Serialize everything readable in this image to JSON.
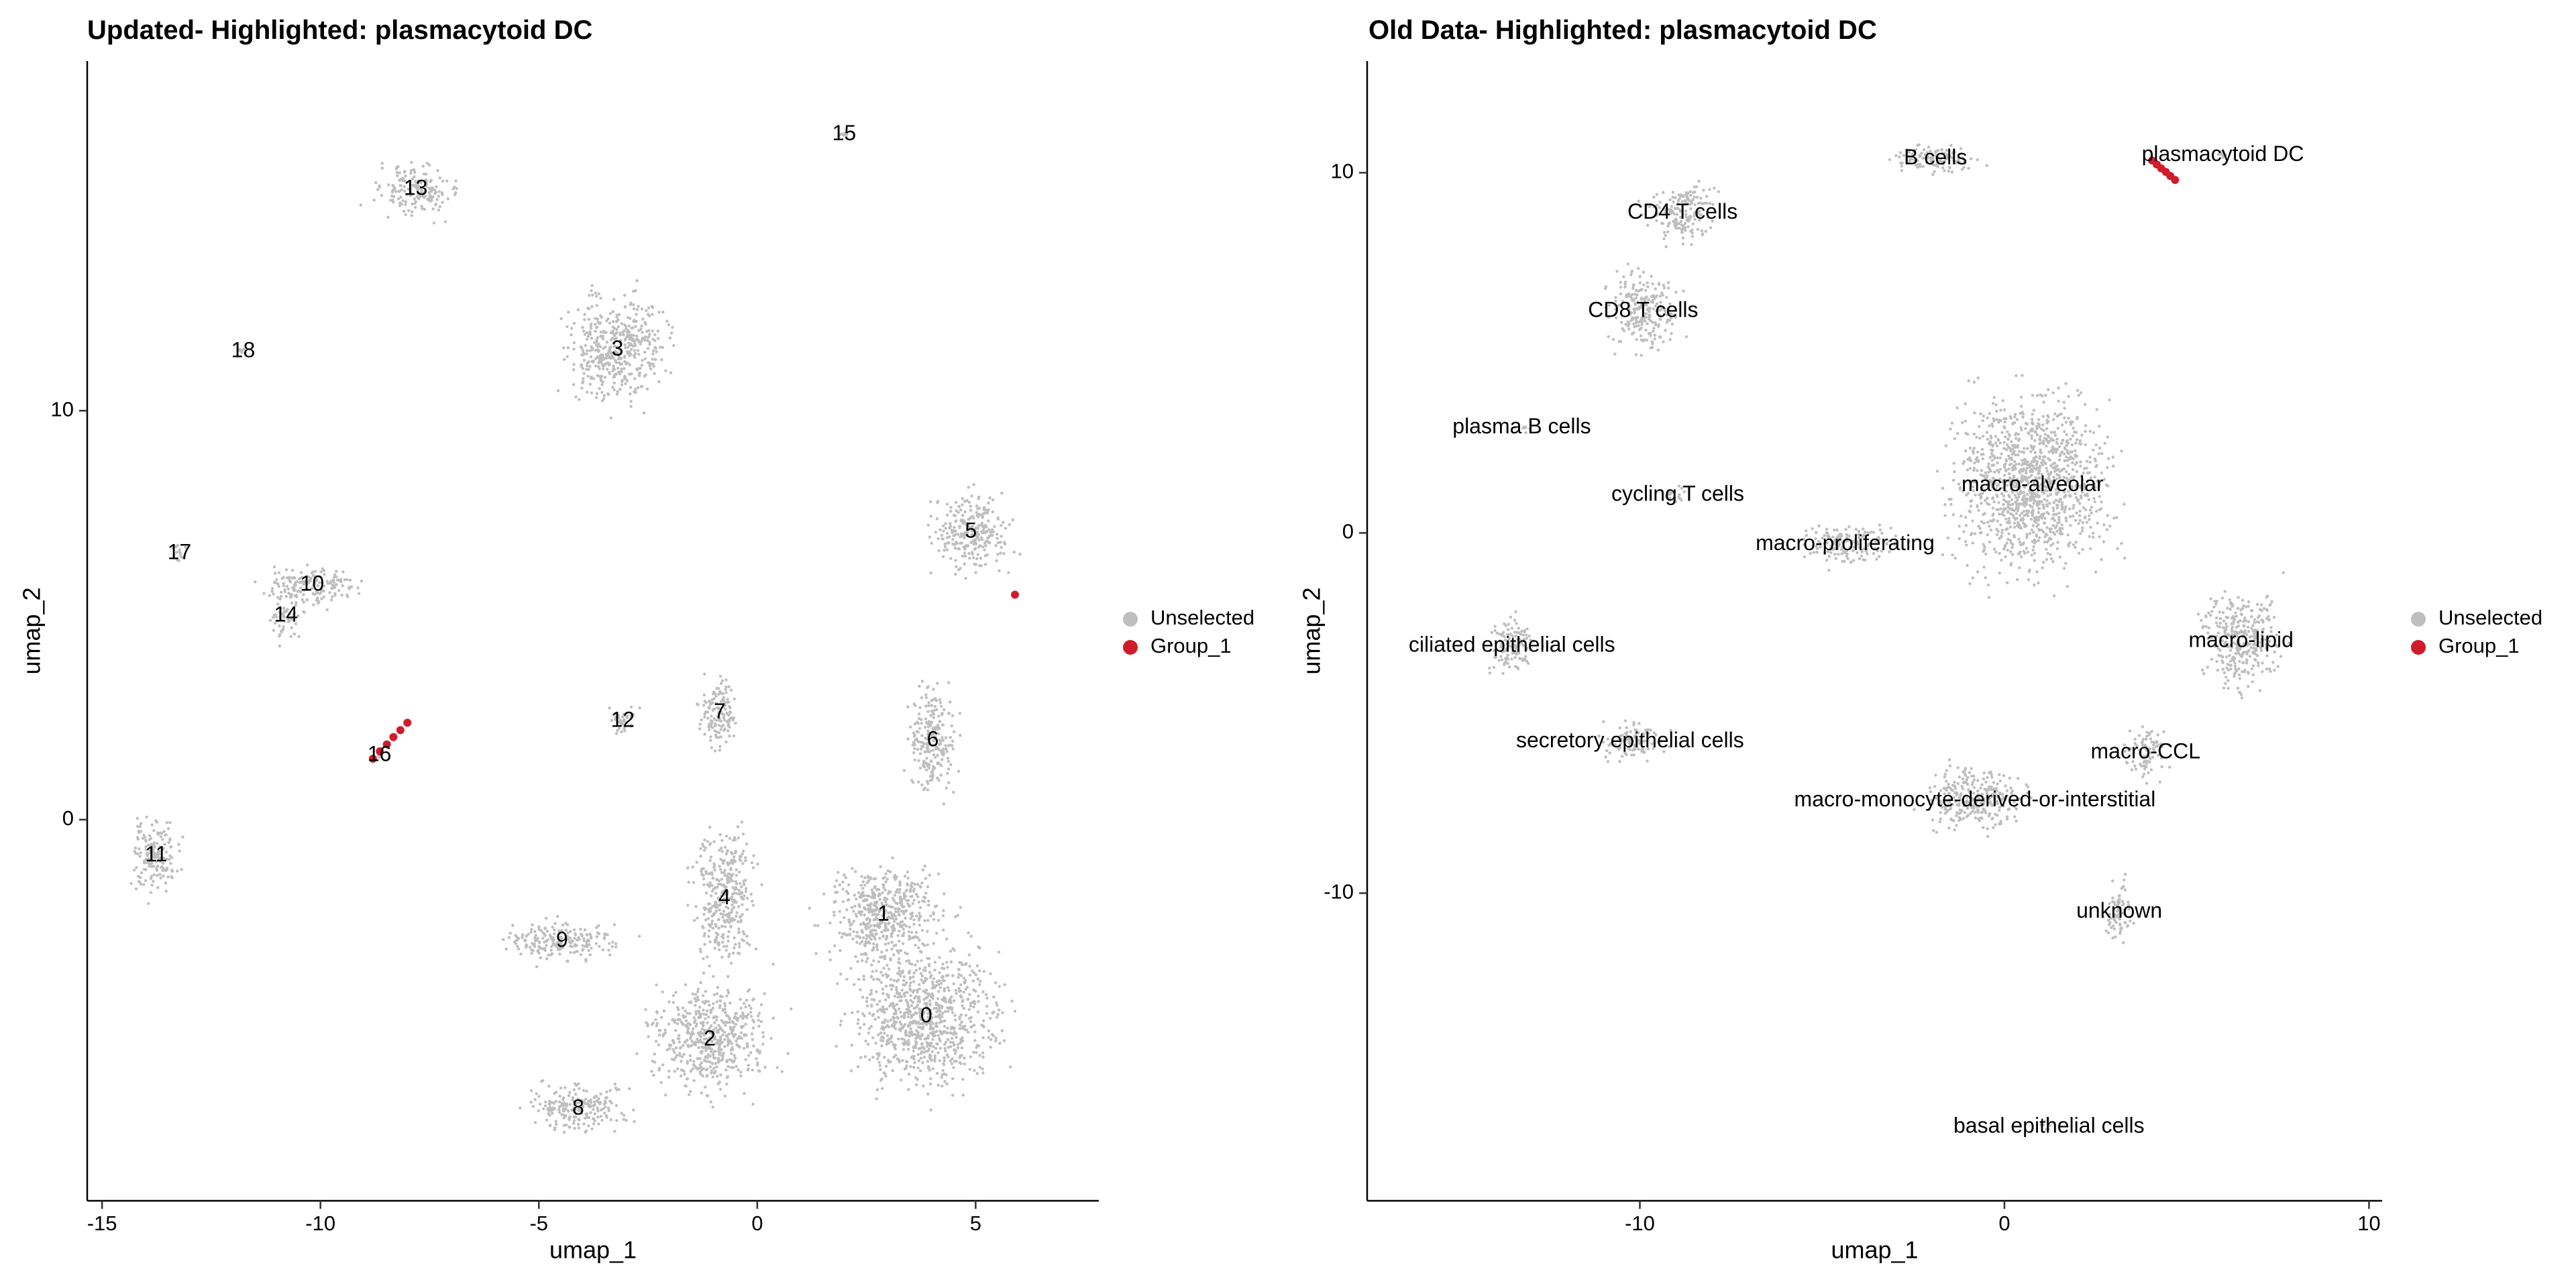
{
  "chart_data": [
    {
      "type": "scatter",
      "title": "Updated- Highlighted: plasmacytoid DC",
      "xlabel": "umap_1",
      "ylabel": "umap_2",
      "xlim": [
        -15.34,
        7.82
      ],
      "ylim": [
        -9.32,
        18.55
      ],
      "xticks": [
        -15,
        -10,
        -5,
        0,
        5
      ],
      "yticks": [
        0,
        10
      ],
      "series": [
        {
          "name": "Unselected",
          "color": "#bebebe"
        },
        {
          "name": "Group_1",
          "color": "#d01c2a",
          "x": [
            -8.8,
            -8.64,
            -8.48,
            -8.33,
            -8.17,
            -8.01,
            5.9
          ],
          "y": [
            1.49,
            1.67,
            1.84,
            2.02,
            2.19,
            2.37,
            5.5
          ]
        }
      ],
      "labels": [
        {
          "text": "0",
          "x": 3.87,
          "y": -4.82
        },
        {
          "text": "1",
          "x": 2.89,
          "y": -2.33
        },
        {
          "text": "2",
          "x": -1.09,
          "y": -5.38
        },
        {
          "text": "3",
          "x": -3.2,
          "y": 11.49
        },
        {
          "text": "4",
          "x": -0.75,
          "y": -1.93
        },
        {
          "text": "5",
          "x": 4.89,
          "y": 7.03
        },
        {
          "text": "6",
          "x": 4.02,
          "y": 1.93
        },
        {
          "text": "7",
          "x": -0.86,
          "y": 2.61
        },
        {
          "text": "8",
          "x": -4.1,
          "y": -7.07
        },
        {
          "text": "9",
          "x": -4.47,
          "y": -2.97
        },
        {
          "text": "10",
          "x": -10.19,
          "y": 5.74
        },
        {
          "text": "11",
          "x": -13.76,
          "y": -0.88
        },
        {
          "text": "12",
          "x": -3.08,
          "y": 2.41
        },
        {
          "text": "13",
          "x": -7.82,
          "y": 15.42
        },
        {
          "text": "14",
          "x": -10.79,
          "y": 4.98
        },
        {
          "text": "15",
          "x": 1.99,
          "y": 16.75
        },
        {
          "text": "16",
          "x": -8.65,
          "y": 1.57
        },
        {
          "text": "17",
          "x": -13.23,
          "y": 6.51
        },
        {
          "text": "18",
          "x": -11.77,
          "y": 11.45
        }
      ]
    },
    {
      "type": "scatter",
      "title": "Old Data- Highlighted: plasmacytoid DC",
      "xlabel": "umap_1",
      "ylabel": "umap_2",
      "xlim": [
        -17.48,
        10.36
      ],
      "ylim": [
        -18.54,
        13.1
      ],
      "xticks": [
        -10,
        0,
        10
      ],
      "yticks": [
        -10,
        0,
        10
      ],
      "series": [
        {
          "name": "Unselected",
          "color": "#bebebe"
        },
        {
          "name": "Group_1",
          "color": "#d01c2a",
          "x": [
            4.05,
            4.18,
            4.3,
            4.43,
            4.55,
            4.68
          ],
          "y": [
            10.34,
            10.23,
            10.12,
            10.02,
            9.91,
            9.8
          ]
        }
      ],
      "labels": [
        {
          "text": "B cells",
          "x": -1.89,
          "y": 10.39
        },
        {
          "text": "plasmacytoid DC",
          "x": 5.99,
          "y": 10.48
        },
        {
          "text": "CD4 T cells",
          "x": -8.83,
          "y": 8.88
        },
        {
          "text": "CD8 T cells",
          "x": -9.91,
          "y": 6.15
        },
        {
          "text": "plasma B cells",
          "x": -13.24,
          "y": 2.92
        },
        {
          "text": "cycling T cells",
          "x": -8.96,
          "y": 1.05
        },
        {
          "text": "macro-alveolar",
          "x": 0.77,
          "y": 1.32
        },
        {
          "text": "macro-proliferating",
          "x": -4.37,
          "y": -0.32
        },
        {
          "text": "ciliated epithelial cells",
          "x": -13.51,
          "y": -3.14
        },
        {
          "text": "macro-lipid",
          "x": 6.49,
          "y": -3.01
        },
        {
          "text": "secretory epithelial cells",
          "x": -10.27,
          "y": -5.79
        },
        {
          "text": "macro-CCL",
          "x": 3.87,
          "y": -6.1
        },
        {
          "text": "macro-monocyte-derived-or-interstitial",
          "x": -0.81,
          "y": -7.43
        },
        {
          "text": "unknown",
          "x": 3.15,
          "y": -10.52
        },
        {
          "text": "basal epithelial cells",
          "x": 1.22,
          "y": -16.49
        }
      ]
    }
  ]
}
